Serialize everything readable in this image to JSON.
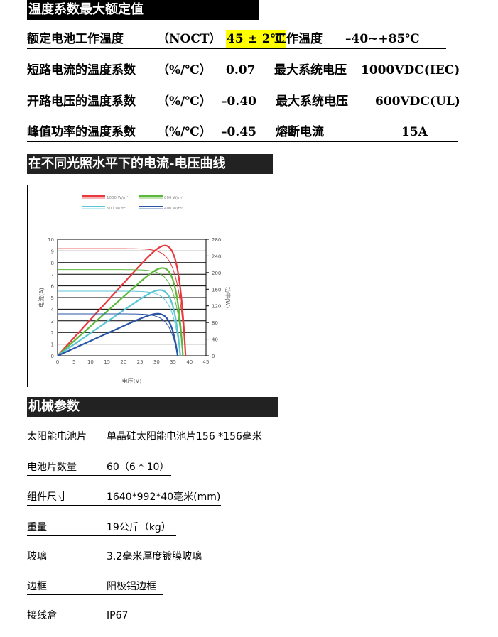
{
  "section1": {
    "title": "温度系数最大额定值",
    "rows": [
      {
        "label": "额定电池工作温度",
        "unit": "（NOCT）",
        "value": "45 ± 2℃",
        "label2": "工作温度",
        "value2": "–40~+85℃"
      },
      {
        "label": "短路电流的温度系数",
        "unit": "（%/℃）",
        "value": "0.07",
        "label2": "最大系统电压",
        "value2": "1000VDC(IEC)"
      },
      {
        "label": "开路电压的温度系数",
        "unit": "（%/℃）",
        "value": "–0.40",
        "label2": "最大系统电压",
        "value2": "600VDC(UL)"
      },
      {
        "label": "峰值功率的温度系数",
        "unit": "（%/℃）",
        "value": "–0.45",
        "label2": "熔断电流",
        "value2": "15A"
      }
    ],
    "highlight_color": "#ffff00"
  },
  "section2": {
    "title": "在不同光照水平下的电流-电压曲线"
  },
  "chart_data": {
    "type": "line",
    "xlabel": "电压(V)",
    "ylabel": "电流(A)",
    "y2label": "功率(W)",
    "xlim": [
      0,
      45
    ],
    "ylim": [
      0,
      10
    ],
    "y2lim": [
      0,
      280
    ],
    "xticks": [
      0,
      5,
      10,
      15,
      20,
      25,
      30,
      35,
      40,
      45
    ],
    "yticks": [
      0,
      1,
      2,
      3,
      4,
      5,
      6,
      7,
      8,
      9,
      10
    ],
    "y2ticks": [
      0,
      40,
      80,
      120,
      160,
      200,
      240,
      280
    ],
    "grid": true,
    "legend_placement": "top",
    "series": [
      {
        "name": "1000 W/m²",
        "color": "#e8383d",
        "isc": 9.2,
        "voc": 38.8,
        "pmax": 265,
        "vmp": 31
      },
      {
        "name": "800 W/m²",
        "color": "#5cb83a",
        "isc": 7.4,
        "voc": 38.0,
        "pmax": 211,
        "vmp": 30.8
      },
      {
        "name": "600 W/m²",
        "color": "#5cc6d6",
        "isc": 5.55,
        "voc": 37.2,
        "pmax": 158,
        "vmp": 29.8
      },
      {
        "name": "400 W/m²",
        "color": "#2a55a5",
        "isc": 3.6,
        "voc": 36.4,
        "pmax": 101,
        "vmp": 29.7
      }
    ]
  },
  "section3": {
    "title": "机械参数",
    "rows": [
      {
        "label": "太阳能电池片",
        "value": "单晶硅太阳能电池片156 *156毫米"
      },
      {
        "label": "电池片数量",
        "value": "60（6 * 10）"
      },
      {
        "label": "组件尺寸",
        "value": "1640*992*40毫米(mm)"
      },
      {
        "label": "重量",
        "value": "19公斤（kg）"
      },
      {
        "label": "玻璃",
        "value": "3.2毫米厚度镀膜玻璃"
      },
      {
        "label": "边框",
        "value": "阳极铝边框"
      },
      {
        "label": "接线盒",
        "value": "IP67"
      }
    ]
  }
}
